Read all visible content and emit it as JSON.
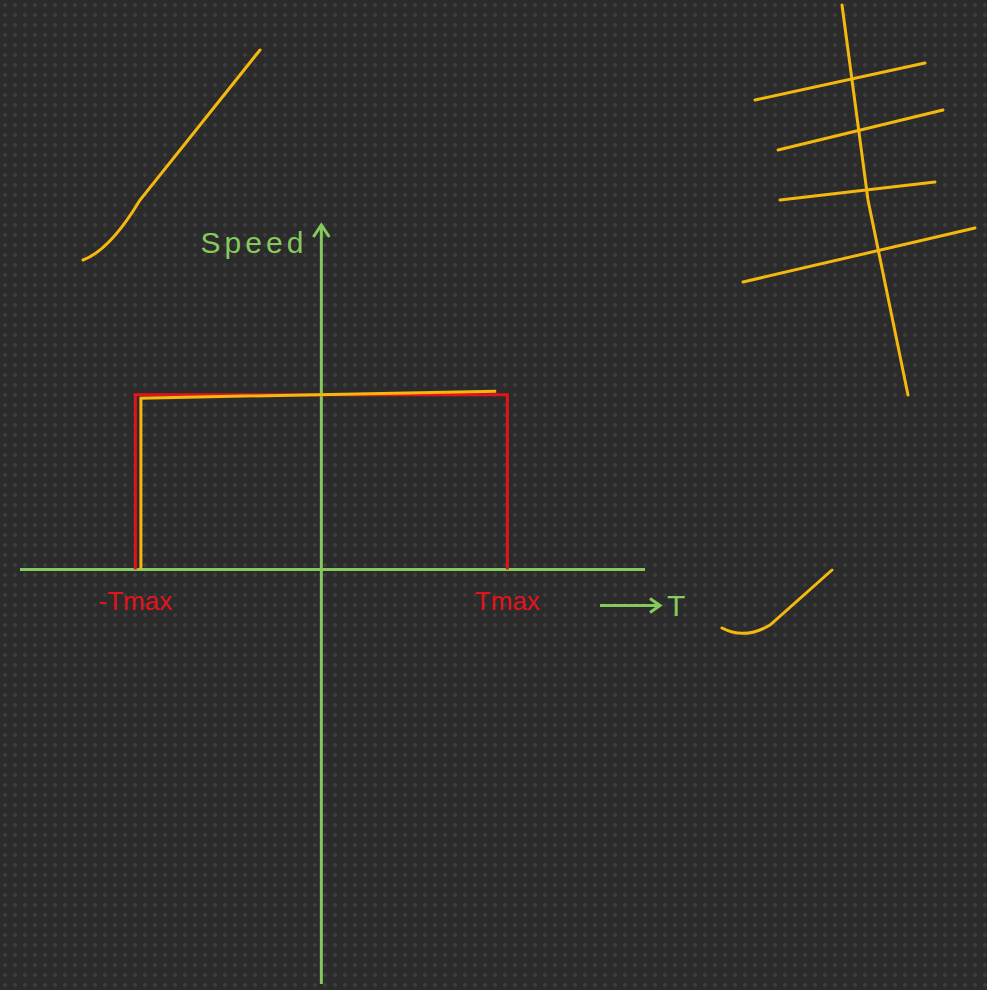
{
  "chart_data": {
    "type": "line",
    "x_label": "T",
    "y_label": "Speed",
    "xlim": [
      -1.62,
      1.74
    ],
    "xticks": [
      {
        "value": -1,
        "label": "-Tmax"
      },
      {
        "value": 1,
        "label": "Tmax"
      }
    ],
    "ylim": [
      -2.37,
      1.97
    ],
    "tick_labels": "x",
    "grid": false,
    "series": [
      {
        "color": "#e3131b",
        "x": [
          -1,
          -1,
          1,
          1
        ],
        "values": [
          0,
          1,
          1,
          0
        ]
      },
      {
        "color": "#f5b80f",
        "x": [
          -0.97,
          -0.97,
          0.94
        ],
        "values": [
          0,
          0.98,
          1.02
        ]
      }
    ]
  }
}
